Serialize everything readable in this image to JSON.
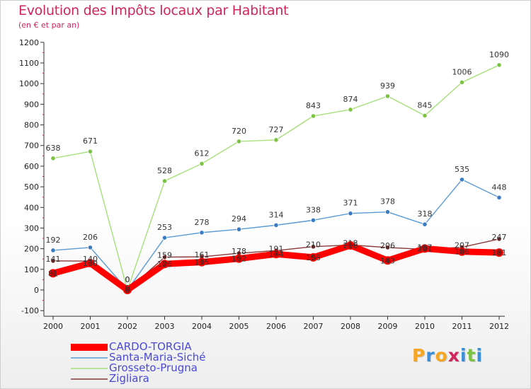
{
  "header": {
    "title": "Evolution des Impôts locaux par Habitant",
    "subtitle": "(en € et par an)"
  },
  "logo": {
    "letters": [
      "P",
      "r",
      "o",
      "x",
      "i",
      "t",
      "i"
    ],
    "text": "Proxiti"
  },
  "chart_data": {
    "type": "line",
    "title": "Evolution des Impôts locaux par Habitant",
    "subtitle": "(en € et par an)",
    "xlabel": "",
    "ylabel": "",
    "ylim": [
      -100,
      1200
    ],
    "y_ticks": [
      -100,
      0,
      100,
      200,
      300,
      400,
      500,
      600,
      700,
      800,
      900,
      1000,
      1100,
      1200
    ],
    "grid": false,
    "legend_position": "bottom-left",
    "x": [
      "2000",
      "2001",
      "2002",
      "2003",
      "2004",
      "2005",
      "2006",
      "2007",
      "2008",
      "2009",
      "2010",
      "2011",
      "2012"
    ],
    "series": [
      {
        "name": "CARDO-TORGIA",
        "color": "#ff0000",
        "marker_color": "#c00000",
        "values": [
          81,
          130,
          0,
          126,
          135,
          152,
          174,
          158,
          216,
          143,
          201,
          186,
          181
        ]
      },
      {
        "name": "Santa-Maria-Siché",
        "color": "#5b9bd5",
        "marker_color": "#3a7cc4",
        "values": [
          192,
          206,
          0,
          253,
          278,
          294,
          314,
          338,
          371,
          378,
          318,
          535,
          448
        ]
      },
      {
        "name": "Grosseto-Prugna",
        "color": "#a6e07a",
        "marker_color": "#7cc243",
        "values": [
          638,
          671,
          0,
          528,
          612,
          720,
          727,
          843,
          874,
          939,
          845,
          1006,
          1090
        ]
      },
      {
        "name": "Zigliara",
        "color": "#8b3a3a",
        "marker_color": "#6e2424",
        "values": [
          141,
          140,
          0,
          159,
          161,
          178,
          191,
          210,
          218,
          206,
          197,
          207,
          247
        ]
      }
    ]
  }
}
